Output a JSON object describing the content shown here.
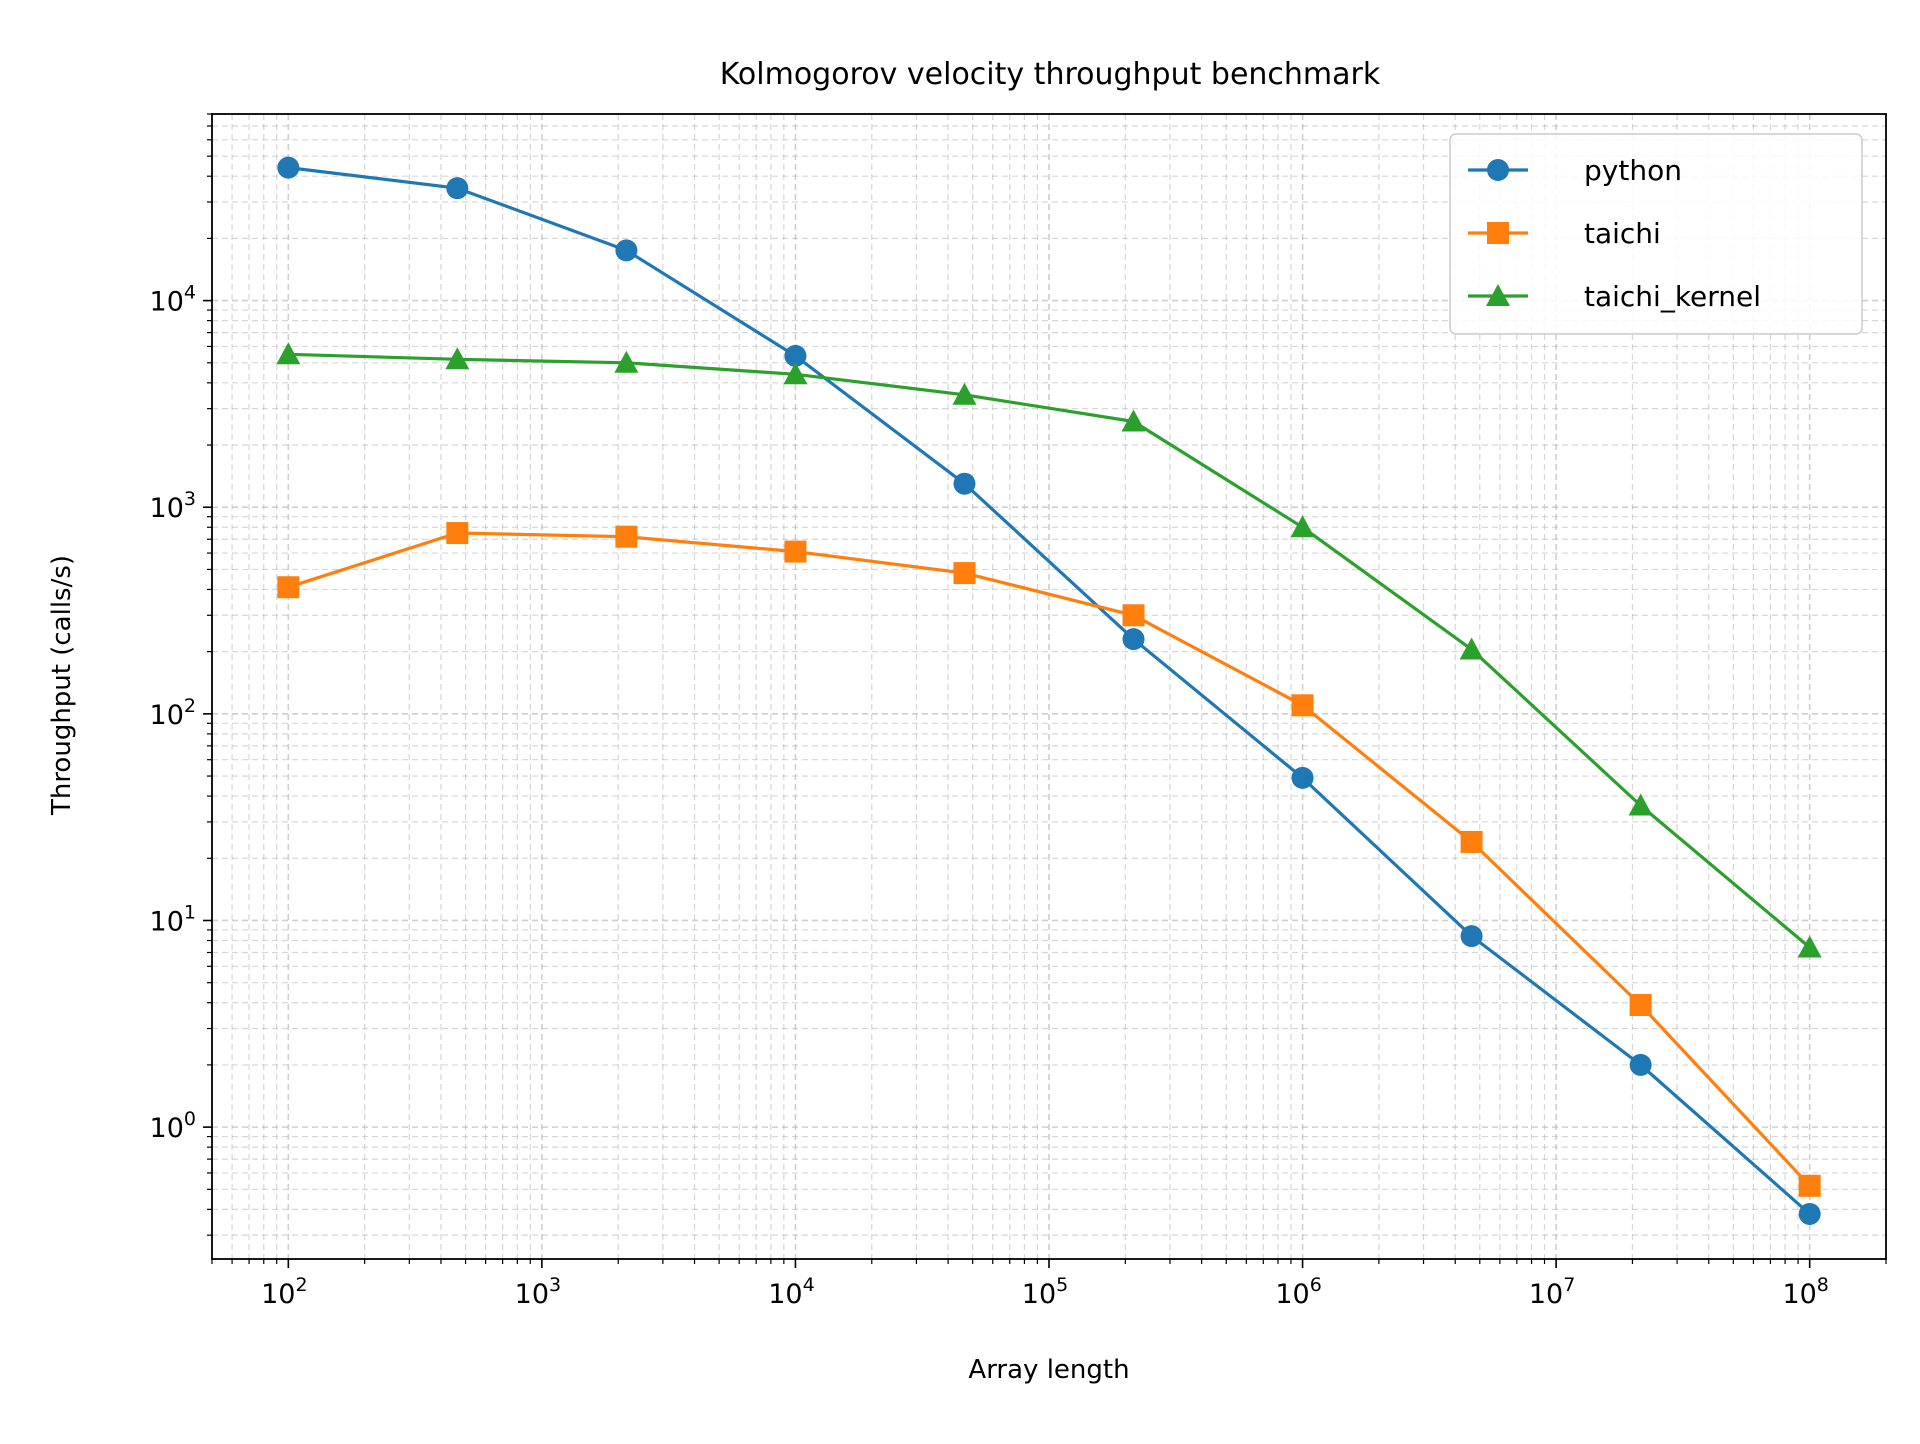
{
  "chart_data": {
    "type": "line",
    "title": "Kolmogorov velocity throughput benchmark",
    "xlabel": "Array length",
    "ylabel": "Throughput (calls/s)",
    "xscale": "log",
    "yscale": "log",
    "xlim": [
      50,
      200000000
    ],
    "ylim": [
      0.23,
      80000
    ],
    "grid": true,
    "grid_style": "dashed, major and minor",
    "legend_position": "top-right",
    "x_tick_labels": [
      {
        "base": "10",
        "exp": "2"
      },
      {
        "base": "10",
        "exp": "3"
      },
      {
        "base": "10",
        "exp": "4"
      },
      {
        "base": "10",
        "exp": "5"
      },
      {
        "base": "10",
        "exp": "6"
      },
      {
        "base": "10",
        "exp": "7"
      },
      {
        "base": "10",
        "exp": "8"
      }
    ],
    "y_tick_labels": [
      {
        "base": "10",
        "exp": "0"
      },
      {
        "base": "10",
        "exp": "1"
      },
      {
        "base": "10",
        "exp": "2"
      },
      {
        "base": "10",
        "exp": "3"
      },
      {
        "base": "10",
        "exp": "4"
      }
    ],
    "x": [
      100,
      464,
      2154,
      10000,
      46416,
      215443,
      1000000,
      4641589,
      21544347,
      100000000
    ],
    "series": [
      {
        "name": "python",
        "color": "#1f77b4",
        "marker": "circle",
        "values": [
          44000,
          35000,
          17500,
          5400,
          1300,
          230,
          49,
          8.4,
          2.0,
          0.38
        ]
      },
      {
        "name": "taichi",
        "color": "#ff7f0e",
        "marker": "square",
        "values": [
          410,
          750,
          720,
          610,
          480,
          300,
          110,
          24,
          3.9,
          0.52
        ]
      },
      {
        "name": "taichi_kernel",
        "color": "#2ca02c",
        "marker": "triangle",
        "values": [
          5500,
          5200,
          5000,
          4400,
          3500,
          2600,
          800,
          205,
          36,
          7.4
        ]
      }
    ]
  }
}
